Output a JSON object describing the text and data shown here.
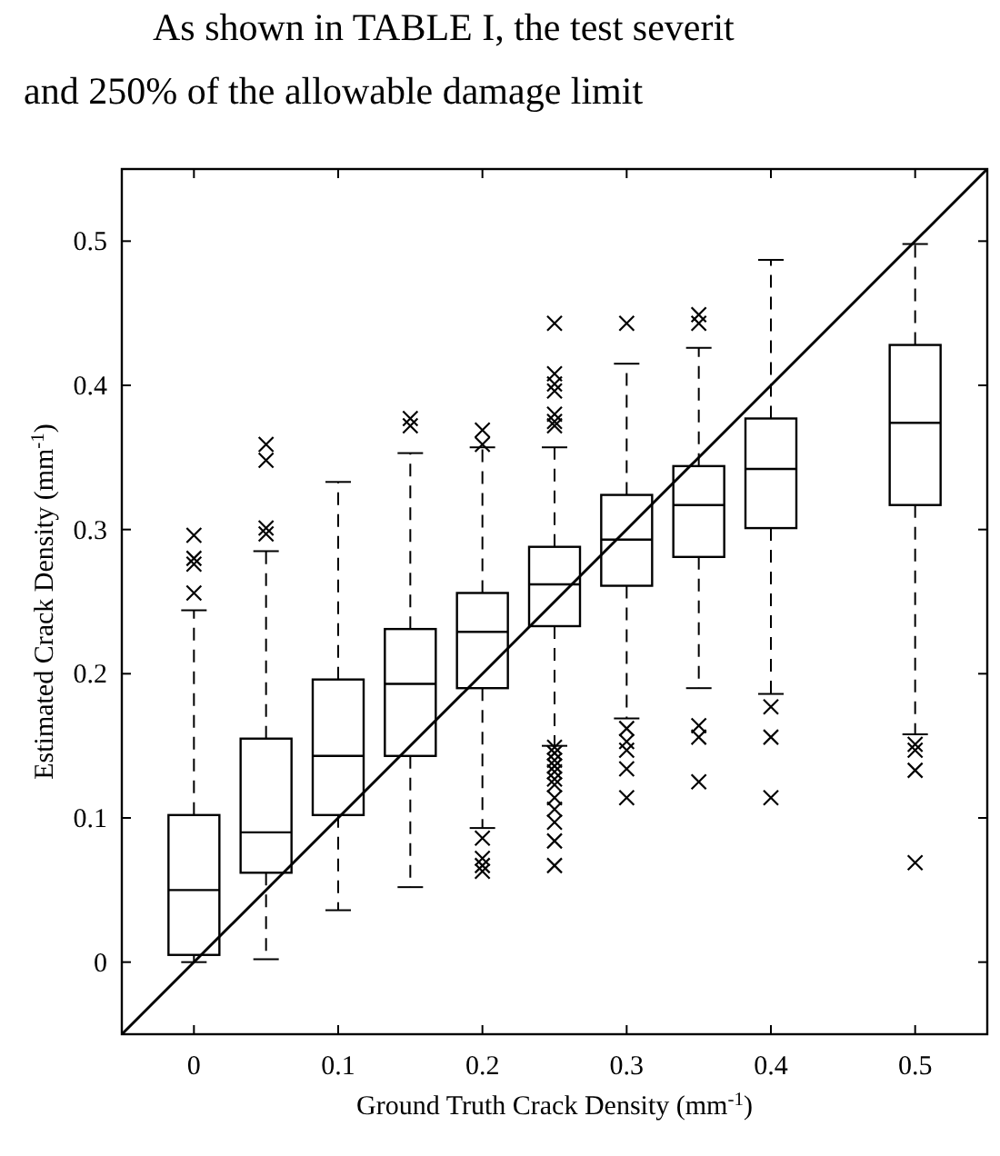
{
  "chart_data": {
    "type": "box",
    "xlabel": "Ground Truth Crack Density (mm$^{-1}$)",
    "ylabel": "Estimated Crack Density (mm$^{-1}$)",
    "annotations": [
      "As shown in TABLE I, the test severit",
      "and 250% of the allowable damage limit"
    ],
    "xlim": [
      -0.05,
      0.55
    ],
    "xticks": [
      0,
      0.1,
      0.2,
      0.3,
      0.4,
      0.5
    ],
    "ylim": [
      -0.05,
      0.55
    ],
    "yticks": [
      0,
      0.1,
      0.2,
      0.3,
      0.4,
      0.5
    ],
    "grid": false,
    "series": [
      {
        "color": "#000000",
        "marker": "cross",
        "x": [
          0,
          0.05,
          0.1,
          0.15,
          0.2,
          0.25,
          0.3,
          0.35,
          0.4,
          0.5
        ],
        "boxes": [
          {
            "low": 0,
            "q1": 0.005,
            "median": 0.05,
            "q3": 0.102,
            "high": 0.244,
            "outliers": [
              0.296,
              0.28,
              0.276,
              0.256
            ]
          },
          {
            "low": 0.002,
            "q1": 0.062,
            "median": 0.09,
            "q3": 0.155,
            "high": 0.285,
            "outliers": [
              0.359,
              0.348,
              0.301,
              0.297
            ]
          },
          {
            "low": 0.036,
            "q1": 0.102,
            "median": 0.143,
            "q3": 0.196,
            "high": 0.333
          },
          {
            "low": 0.052,
            "q1": 0.143,
            "median": 0.193,
            "q3": 0.231,
            "high": 0.353,
            "outliers": [
              0.377,
              0.372
            ]
          },
          {
            "low": 0.093,
            "q1": 0.19,
            "median": 0.229,
            "q3": 0.256,
            "high": 0.357,
            "outliers": [
              0.369,
              0.359,
              0.086,
              0.072,
              0.067,
              0.063
            ]
          },
          {
            "low": 0.15,
            "q1": 0.233,
            "median": 0.262,
            "q3": 0.288,
            "high": 0.357,
            "outliers": [
              0.443,
              0.408,
              0.401,
              0.396,
              0.38,
              0.375,
              0.372,
              0.149,
              0.145,
              0.14,
              0.136,
              0.132,
              0.127,
              0.123,
              0.114,
              0.106,
              0.097,
              0.084,
              0.067
            ]
          },
          {
            "low": 0.169,
            "q1": 0.261,
            "median": 0.293,
            "q3": 0.324,
            "high": 0.415,
            "outliers": [
              0.443,
              0.162,
              0.153,
              0.147,
              0.134,
              0.114
            ]
          },
          {
            "low": 0.19,
            "q1": 0.281,
            "median": 0.317,
            "q3": 0.344,
            "high": 0.426,
            "outliers": [
              0.449,
              0.443,
              0.164,
              0.156,
              0.125
            ]
          },
          {
            "low": 0.186,
            "q1": 0.301,
            "median": 0.342,
            "q3": 0.377,
            "high": 0.487,
            "outliers": [
              0.177,
              0.156,
              0.114
            ]
          },
          {
            "low": 0.158,
            "q1": 0.317,
            "median": 0.374,
            "q3": 0.428,
            "high": 0.498,
            "outliers": [
              0.151,
              0.147,
              0.133,
              0.069
            ]
          }
        ]
      },
      {
        "type": "line",
        "color": "#000000",
        "line_style": "solid",
        "x": [
          -0.05,
          0.55
        ],
        "values": [
          -0.05,
          0.55
        ]
      }
    ]
  }
}
